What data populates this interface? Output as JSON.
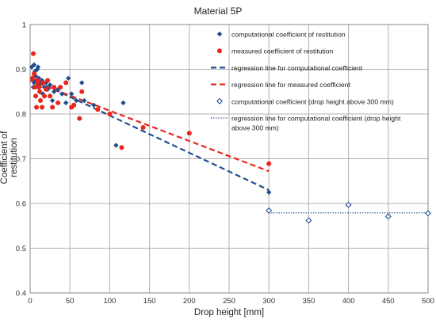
{
  "chart_data": {
    "type": "scatter",
    "title": "Material 5P",
    "xlabel": "Drop height [mm]",
    "ylabel": "Coefficient of restitution",
    "xlim": [
      0,
      500
    ],
    "ylim": [
      0.4,
      1.0
    ],
    "xticks": [
      0,
      50,
      100,
      150,
      200,
      250,
      300,
      350,
      400,
      450,
      500
    ],
    "yticks": [
      0.4,
      0.5,
      0.6,
      0.7,
      0.8,
      0.9,
      1
    ],
    "grid": true,
    "legend_position": "top-right (inside plot)",
    "series": [
      {
        "name": "computational coefficient of restitution",
        "kind": "scatter",
        "marker": "diamond-filled",
        "color": "#1f4e8c",
        "points": [
          [
            2,
            0.905
          ],
          [
            3,
            0.88
          ],
          [
            4,
            0.86
          ],
          [
            5,
            0.91
          ],
          [
            5,
            0.87
          ],
          [
            6,
            0.895
          ],
          [
            7,
            0.885
          ],
          [
            8,
            0.875
          ],
          [
            9,
            0.9
          ],
          [
            10,
            0.905
          ],
          [
            10,
            0.865
          ],
          [
            11,
            0.88
          ],
          [
            12,
            0.86
          ],
          [
            13,
            0.87
          ],
          [
            15,
            0.875
          ],
          [
            16,
            0.845
          ],
          [
            18,
            0.86
          ],
          [
            20,
            0.87
          ],
          [
            22,
            0.855
          ],
          [
            25,
            0.865
          ],
          [
            28,
            0.83
          ],
          [
            30,
            0.85
          ],
          [
            35,
            0.855
          ],
          [
            40,
            0.845
          ],
          [
            45,
            0.825
          ],
          [
            48,
            0.88
          ],
          [
            52,
            0.845
          ],
          [
            58,
            0.83
          ],
          [
            65,
            0.87
          ],
          [
            68,
            0.83
          ],
          [
            80,
            0.82
          ],
          [
            100,
            0.8
          ],
          [
            108,
            0.73
          ],
          [
            117,
            0.825
          ],
          [
            300,
            0.625
          ]
        ]
      },
      {
        "name": "measured coefficient of restitution",
        "kind": "scatter",
        "marker": "circle-filled",
        "color": "#e8261c",
        "points": [
          [
            3,
            0.88
          ],
          [
            4,
            0.935
          ],
          [
            5,
            0.89
          ],
          [
            6,
            0.86
          ],
          [
            7,
            0.84
          ],
          [
            8,
            0.815
          ],
          [
            9,
            0.87
          ],
          [
            10,
            0.875
          ],
          [
            11,
            0.86
          ],
          [
            12,
            0.85
          ],
          [
            13,
            0.83
          ],
          [
            15,
            0.815
          ],
          [
            16,
            0.87
          ],
          [
            18,
            0.84
          ],
          [
            20,
            0.855
          ],
          [
            22,
            0.875
          ],
          [
            25,
            0.84
          ],
          [
            28,
            0.815
          ],
          [
            30,
            0.86
          ],
          [
            35,
            0.825
          ],
          [
            38,
            0.86
          ],
          [
            45,
            0.87
          ],
          [
            52,
            0.815
          ],
          [
            55,
            0.82
          ],
          [
            62,
            0.79
          ],
          [
            65,
            0.85
          ],
          [
            85,
            0.81
          ],
          [
            100,
            0.8
          ],
          [
            115,
            0.725
          ],
          [
            142,
            0.77
          ],
          [
            200,
            0.757
          ],
          [
            300,
            0.689
          ]
        ]
      },
      {
        "name": "regression line for computational coefficient",
        "kind": "line",
        "dash": "long",
        "color": "#1f4e8c",
        "points": [
          [
            0,
            0.88
          ],
          [
            300,
            0.63
          ]
        ]
      },
      {
        "name": "regression line for measured coefficient",
        "kind": "line",
        "dash": "long",
        "color": "#e8261c",
        "points": [
          [
            0,
            0.875
          ],
          [
            300,
            0.672
          ]
        ]
      },
      {
        "name": "computational coefficient (drop height above 300 mm)",
        "kind": "scatter",
        "marker": "diamond-open",
        "color": "#1f4e8c",
        "points": [
          [
            300,
            0.584
          ],
          [
            350,
            0.562
          ],
          [
            400,
            0.597
          ],
          [
            450,
            0.571
          ],
          [
            500,
            0.578
          ]
        ]
      },
      {
        "name": "regression line for computational coefficient (drop height above 300 mm)",
        "kind": "line",
        "dash": "dotted",
        "color": "#1f4e8c",
        "points": [
          [
            300,
            0.579
          ],
          [
            500,
            0.579
          ]
        ]
      }
    ],
    "legend_lines": [
      [
        "computational coefficient of restitution"
      ],
      [
        "measured coefficient of restitution"
      ],
      [
        "regression line for computational coefficient"
      ],
      [
        "regression line for measured coefficient"
      ],
      [
        "computational coefficient (drop height above 300 mm)"
      ],
      [
        "regression line for computational coefficient (drop height",
        "above 300 mm)"
      ]
    ]
  }
}
